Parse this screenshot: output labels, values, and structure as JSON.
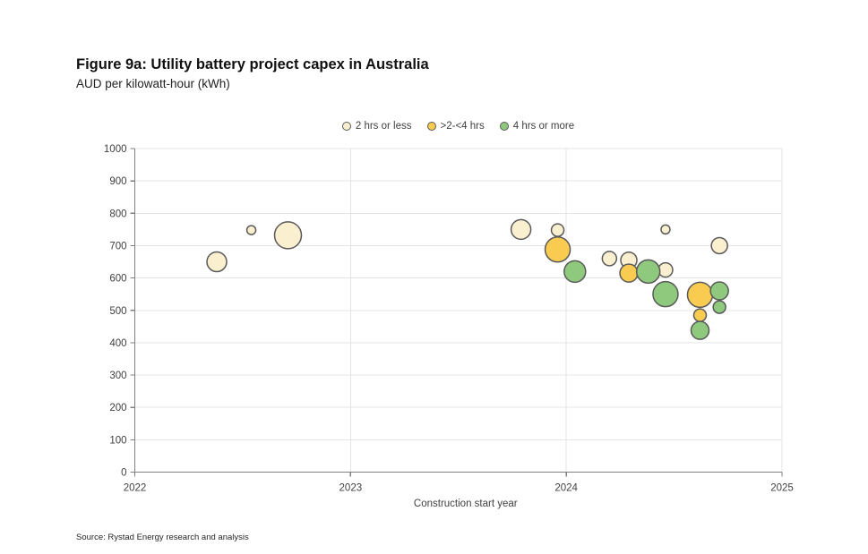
{
  "figure": {
    "title": "Figure 9a: Utility battery project capex in Australia",
    "subtitle": "AUD per kilowatt-hour (kWh)",
    "source": "Source: Rystad Energy research and analysis"
  },
  "legend": [
    {
      "label": "2 hrs or less",
      "color": "#FAF0CF"
    },
    {
      "label": ">2-<4 hrs",
      "color": "#F9CB50"
    },
    {
      "label": "4 hrs or more",
      "color": "#8FC97E"
    }
  ],
  "chart_data": {
    "type": "scatter",
    "title": "Figure 9a: Utility battery project capex in Australia",
    "subtitle": "AUD per kilowatt-hour (kWh)",
    "xlabel": "Construction start year",
    "ylabel": "AUD per kilowatt-hour (kWh)",
    "xlim": [
      2022,
      2025
    ],
    "ylim": [
      0,
      1000
    ],
    "x_ticks": [
      2022,
      2023,
      2024,
      2025
    ],
    "x_tick_labels": [
      "2022",
      "2023",
      "2024",
      "2025"
    ],
    "y_ticks": [
      0,
      100,
      200,
      300,
      400,
      500,
      600,
      700,
      800,
      900,
      1000
    ],
    "y_tick_labels": [
      "0",
      "100",
      "200",
      "300",
      "400",
      "500",
      "600",
      "700",
      "800",
      "900",
      "1000"
    ],
    "grid": "on",
    "legend_position": "top-center",
    "series": [
      {
        "name": "2 hrs or less",
        "color": "#FAF0CF",
        "points": [
          {
            "x": 2022.38,
            "y": 650,
            "r": 11
          },
          {
            "x": 2022.54,
            "y": 748,
            "r": 5
          },
          {
            "x": 2022.71,
            "y": 732,
            "r": 15
          },
          {
            "x": 2023.79,
            "y": 750,
            "r": 11
          },
          {
            "x": 2023.96,
            "y": 748,
            "r": 7
          },
          {
            "x": 2024.2,
            "y": 660,
            "r": 8
          },
          {
            "x": 2024.29,
            "y": 655,
            "r": 9
          },
          {
            "x": 2024.46,
            "y": 750,
            "r": 5
          },
          {
            "x": 2024.46,
            "y": 625,
            "r": 8
          },
          {
            "x": 2024.71,
            "y": 700,
            "r": 9
          }
        ]
      },
      {
        "name": ">2-<4 hrs",
        "color": "#F9CB50",
        "points": [
          {
            "x": 2023.96,
            "y": 688,
            "r": 14
          },
          {
            "x": 2024.29,
            "y": 615,
            "r": 10
          },
          {
            "x": 2024.62,
            "y": 548,
            "r": 14
          },
          {
            "x": 2024.62,
            "y": 485,
            "r": 7
          }
        ]
      },
      {
        "name": "4 hrs or more",
        "color": "#8FC97E",
        "points": [
          {
            "x": 2024.04,
            "y": 620,
            "r": 12
          },
          {
            "x": 2024.38,
            "y": 620,
            "r": 13
          },
          {
            "x": 2024.46,
            "y": 550,
            "r": 14
          },
          {
            "x": 2024.71,
            "y": 560,
            "r": 10
          },
          {
            "x": 2024.71,
            "y": 510,
            "r": 7
          },
          {
            "x": 2024.62,
            "y": 438,
            "r": 10
          }
        ]
      }
    ],
    "styles": {
      "bubble_stroke": "#595959",
      "grid_color": "#E4E4E4",
      "axis_color": "#808080",
      "tick_text_color": "#404040",
      "axis_label_color": "#3f3f3f"
    }
  }
}
